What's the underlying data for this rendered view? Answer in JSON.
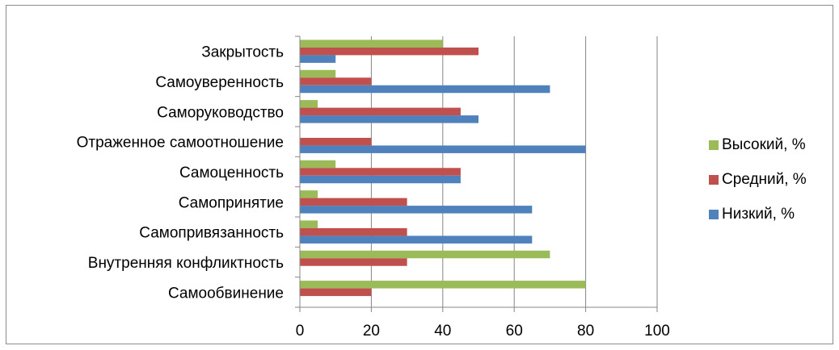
{
  "chart_data": {
    "type": "bar",
    "orientation": "horizontal",
    "categories": [
      "Закрытость",
      "Самоуверенность",
      "Саморуководство",
      "Отраженное самоотношение",
      "Самоценность",
      "Самопринятие",
      "Самопривязанность",
      "Внутренняя конфликтность",
      "Самообвинение"
    ],
    "series": [
      {
        "name": "Высокий, %",
        "color": "#9bbb59",
        "values": [
          40,
          10,
          5,
          0,
          10,
          5,
          5,
          70,
          80
        ]
      },
      {
        "name": "Средний, %",
        "color": "#c0504d",
        "values": [
          50,
          20,
          45,
          20,
          45,
          30,
          30,
          30,
          20
        ]
      },
      {
        "name": "Низкий, %",
        "color": "#4f81bd",
        "values": [
          10,
          70,
          50,
          80,
          45,
          65,
          65,
          0,
          0
        ]
      }
    ],
    "xlim": [
      0,
      100
    ],
    "xticks": [
      "0",
      "20",
      "40",
      "60",
      "80",
      "100"
    ],
    "grid": "vertical",
    "legend_position": "right"
  }
}
